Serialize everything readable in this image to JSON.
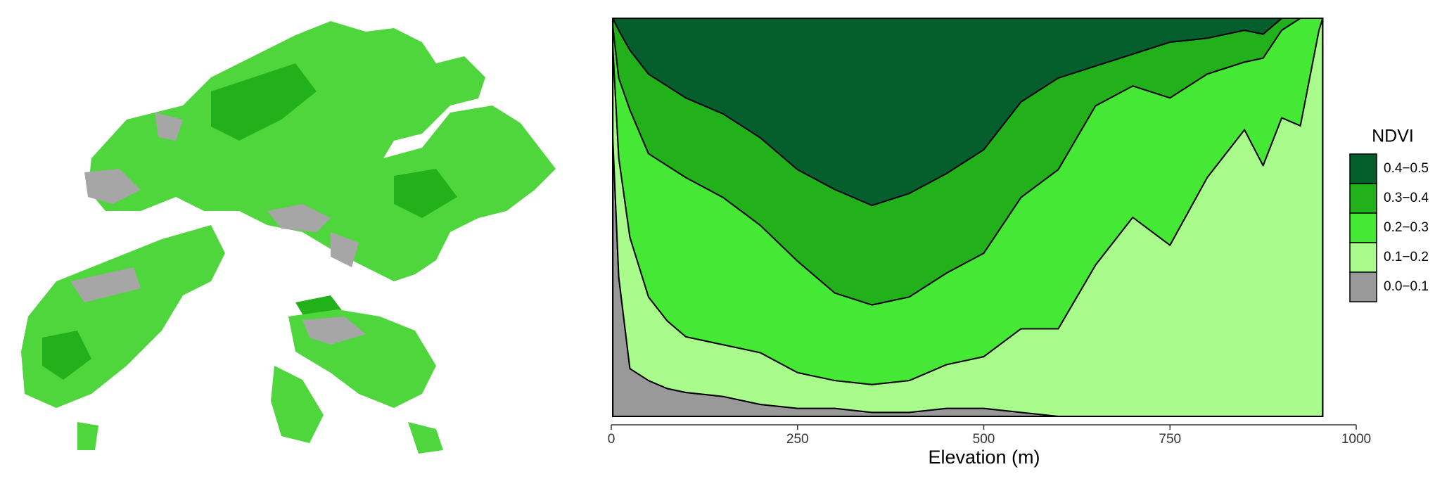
{
  "chart_data": {
    "type": "stacked_area",
    "x_label": "Elevation (m)",
    "legend_title": "NDVI",
    "legend_position": "right",
    "xlim": [
      0,
      1000
    ],
    "xticks": [
      0,
      250,
      500,
      750,
      1000
    ],
    "ylim": [
      0,
      1
    ],
    "x": [
      2,
      10,
      25,
      50,
      75,
      100,
      150,
      200,
      250,
      300,
      350,
      400,
      450,
      500,
      550,
      600,
      650,
      700,
      750,
      800,
      850,
      875,
      900,
      925,
      950,
      955
    ],
    "series": [
      {
        "name": "0.0−0.1",
        "color": "#999999",
        "values": [
          0.7,
          0.35,
          0.12,
          0.09,
          0.07,
          0.06,
          0.05,
          0.03,
          0.02,
          0.02,
          0.01,
          0.01,
          0.02,
          0.02,
          0.01,
          0,
          0,
          0,
          0,
          0,
          0,
          0,
          0,
          0,
          0,
          0
        ]
      },
      {
        "name": "0.1−0.2",
        "color": "#a9fb8b",
        "values": [
          0.23,
          0.3,
          0.33,
          0.21,
          0.17,
          0.14,
          0.13,
          0.13,
          0.09,
          0.07,
          0.07,
          0.08,
          0.11,
          0.13,
          0.21,
          0.22,
          0.38,
          0.5,
          0.43,
          0.6,
          0.72,
          0.63,
          0.75,
          0.73,
          0.97,
          1.0
        ]
      },
      {
        "name": "0.2−0.3",
        "color": "#45e835",
        "values": [
          0.05,
          0.2,
          0.32,
          0.36,
          0.39,
          0.4,
          0.37,
          0.32,
          0.28,
          0.22,
          0.2,
          0.21,
          0.23,
          0.26,
          0.33,
          0.4,
          0.4,
          0.33,
          0.37,
          0.26,
          0.17,
          0.27,
          0.22,
          0.27,
          0.03,
          0
        ]
      },
      {
        "name": "0.3−0.4",
        "color": "#22b11a",
        "values": [
          0.02,
          0.12,
          0.15,
          0.2,
          0.2,
          0.2,
          0.21,
          0.22,
          0.23,
          0.26,
          0.25,
          0.26,
          0.25,
          0.26,
          0.24,
          0.23,
          0.1,
          0.08,
          0.14,
          0.09,
          0.08,
          0.06,
          0.03,
          0,
          0,
          0
        ]
      },
      {
        "name": "0.4−0.5",
        "color": "#045f2c",
        "values": [
          0,
          0.03,
          0.08,
          0.14,
          0.17,
          0.2,
          0.24,
          0.3,
          0.38,
          0.43,
          0.47,
          0.44,
          0.39,
          0.33,
          0.21,
          0.15,
          0.12,
          0.09,
          0.06,
          0.05,
          0.03,
          0.04,
          0,
          0,
          0,
          0
        ]
      }
    ]
  }
}
